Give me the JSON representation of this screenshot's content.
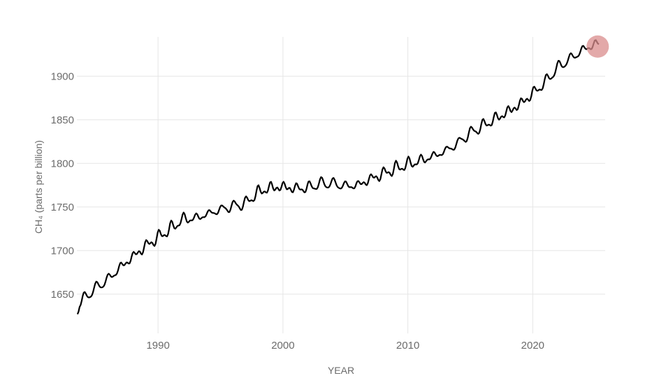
{
  "chart_data": {
    "type": "line",
    "xlabel": "YEAR",
    "ylabel": "CH₄ (parts per billion)",
    "xlim": [
      1983.5,
      2025.8
    ],
    "ylim": [
      1605,
      1945
    ],
    "x_ticks": [
      1990,
      2000,
      2010,
      2020
    ],
    "y_ticks": [
      1650,
      1700,
      1750,
      1800,
      1850,
      1900
    ],
    "grid": true,
    "legend": "none",
    "colors": {
      "line": "#000000",
      "highlight": "#d98c8c",
      "grid": "#e6e6e6",
      "tick_text": "#6b6b6b"
    },
    "series": [
      {
        "annual": {
          "x": [
            1984,
            1985,
            1986,
            1987,
            1988,
            1989,
            1990,
            1991,
            1992,
            1993,
            1994,
            1995,
            1996,
            1997,
            1998,
            1999,
            2000,
            2001,
            2002,
            2003,
            2004,
            2005,
            2006,
            2007,
            2008,
            2009,
            2010,
            2011,
            2012,
            2013,
            2014,
            2015,
            2016,
            2017,
            2018,
            2019,
            2020,
            2021,
            2022,
            2023,
            2024,
            2025
          ],
          "y": [
            1644,
            1657,
            1667,
            1681,
            1693,
            1705,
            1715,
            1725,
            1736,
            1737,
            1742,
            1747,
            1751,
            1754,
            1767,
            1772,
            1773,
            1771,
            1772,
            1777,
            1777,
            1774,
            1775,
            1782,
            1788,
            1794,
            1799,
            1803,
            1808,
            1814,
            1823,
            1835,
            1843,
            1851,
            1859,
            1868,
            1880,
            1893,
            1910,
            1920,
            1930,
            1937
          ]
        },
        "seasonal_amplitude": 6,
        "points": []
      }
    ],
    "highlight_point": {
      "x": 2025.2,
      "y": 1934
    }
  }
}
